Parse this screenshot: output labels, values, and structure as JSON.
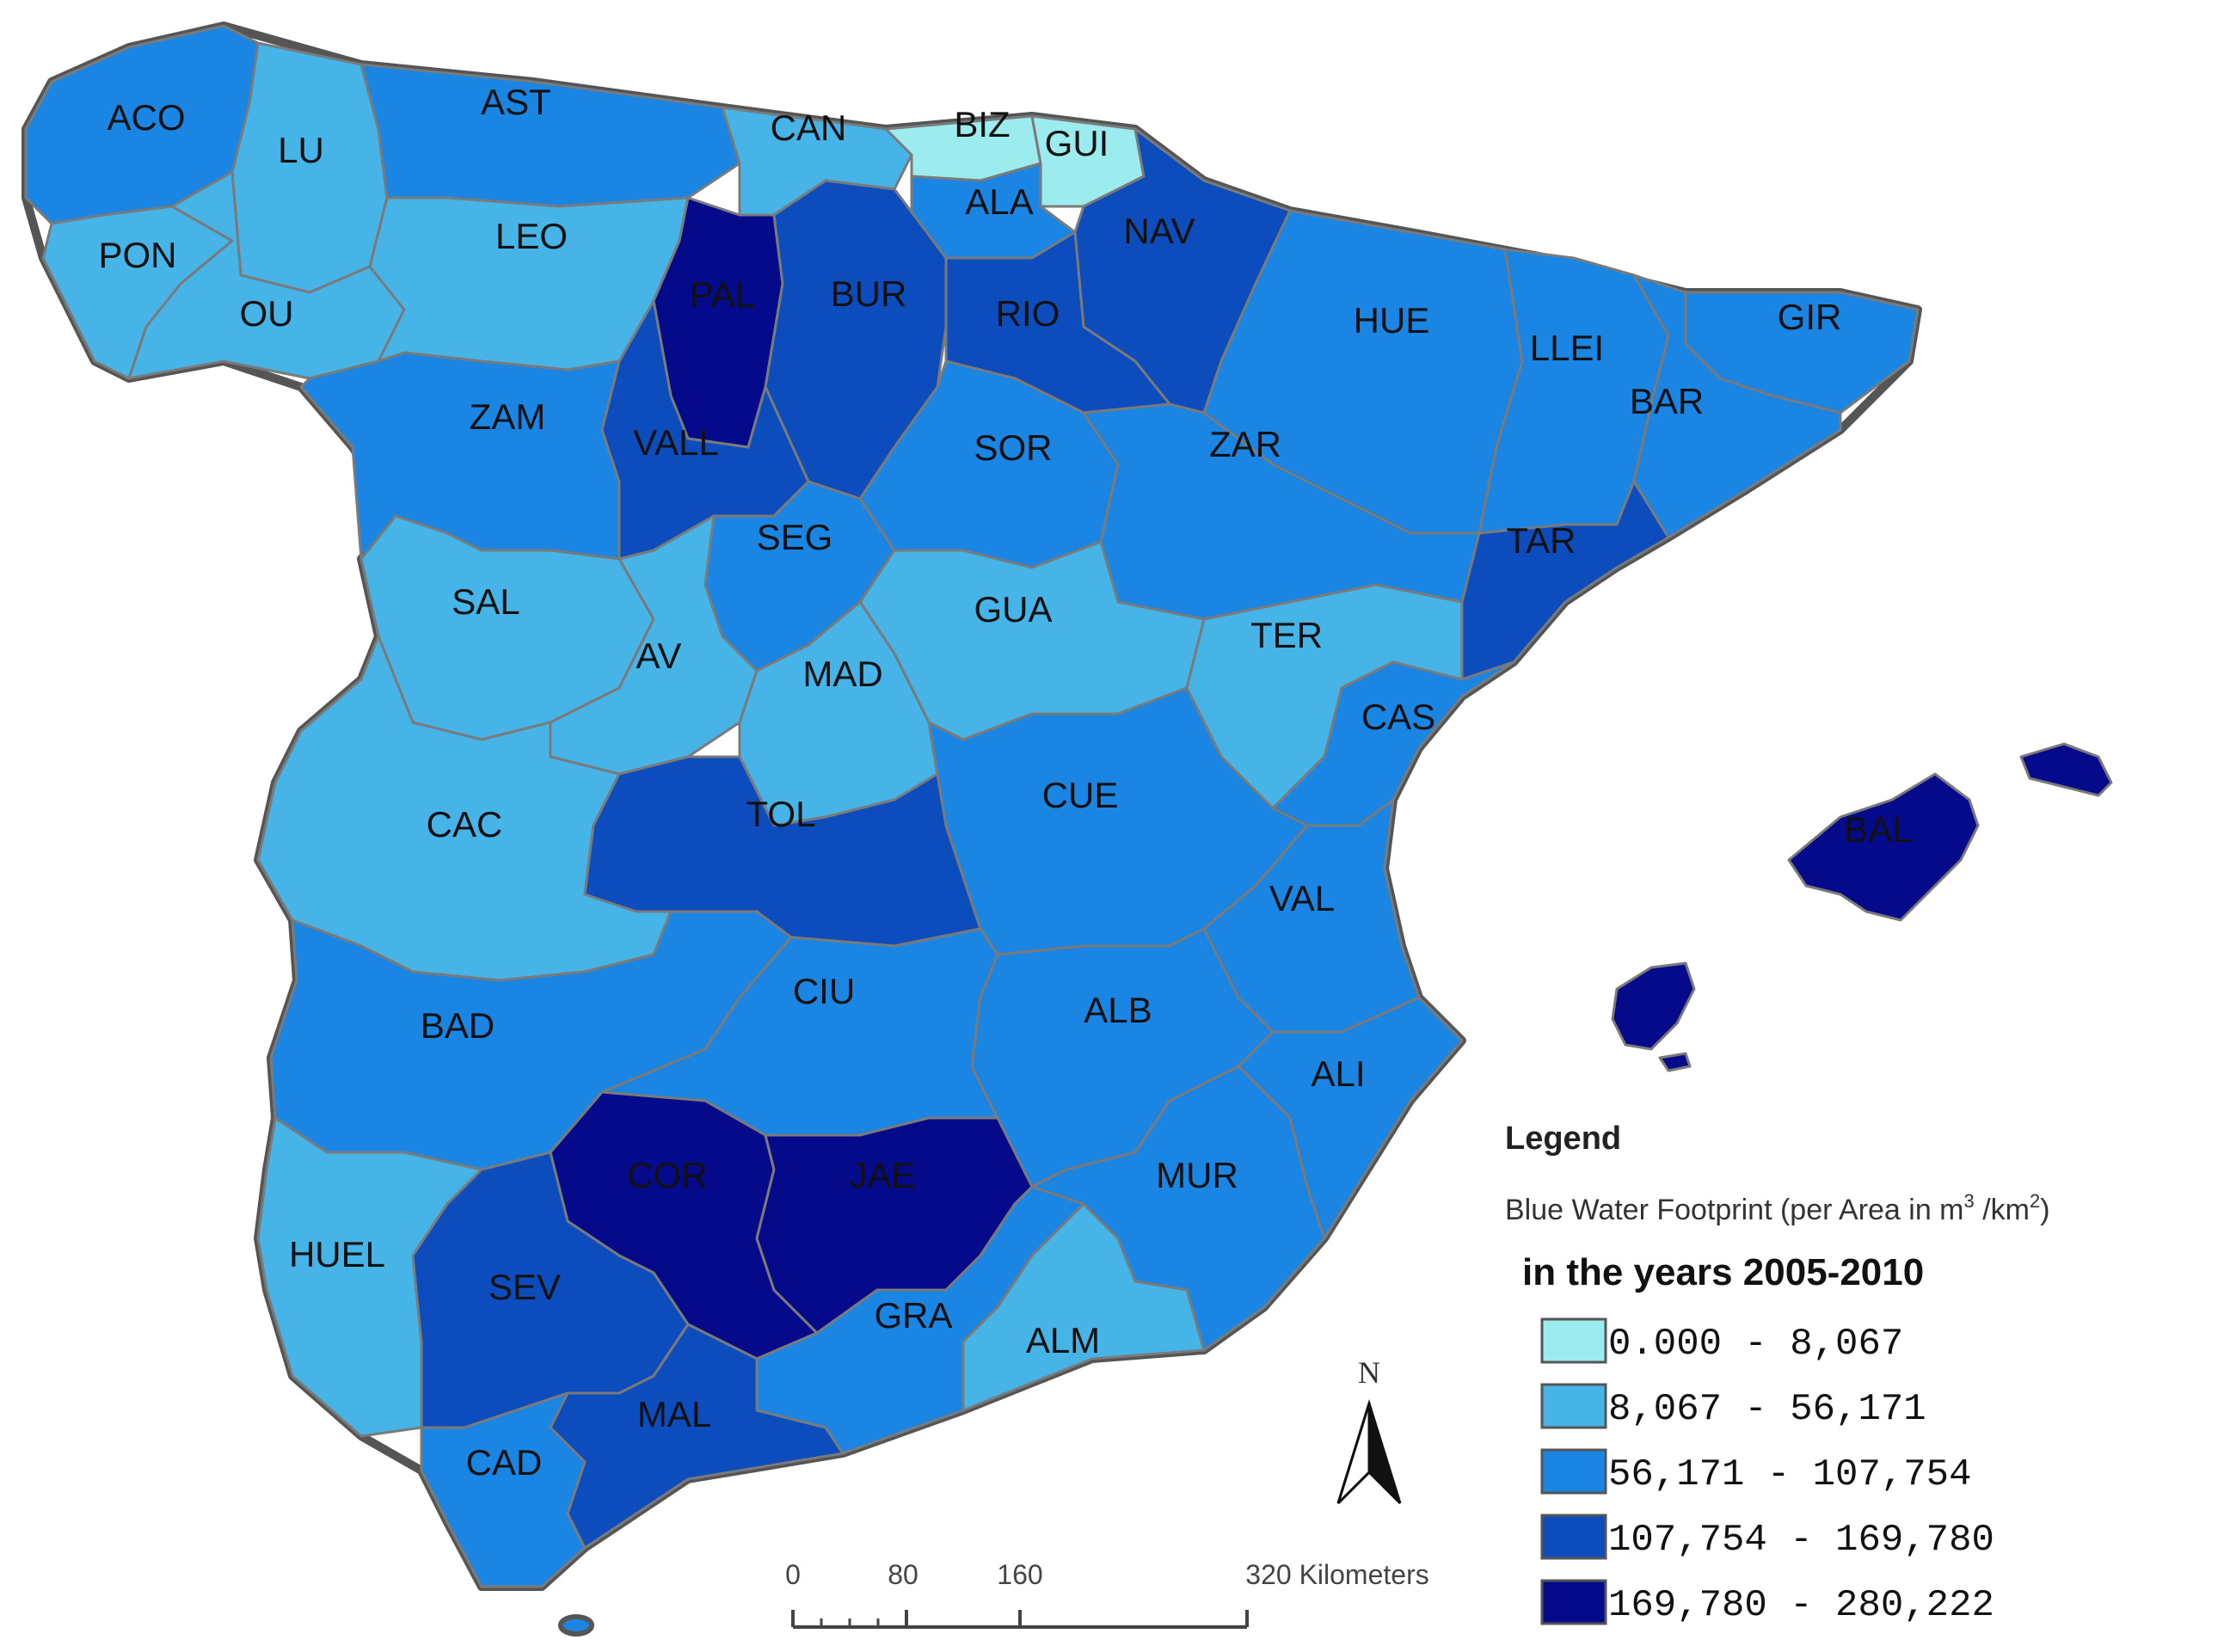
{
  "legend": {
    "title": "Legend",
    "subtitle": "Blue Water Footprint (per Area  in  m",
    "subtitle_sup1": "3",
    "subtitle_mid": " /km",
    "subtitle_sup2": "2",
    "subtitle_end": ")",
    "years": "in the years 2005-2010",
    "classes": [
      {
        "range": "0.000 - 8,067",
        "color": "#9cecef"
      },
      {
        "range": "8,067 - 56,171",
        "color": "#47b4e8"
      },
      {
        "range": "56,171 - 107,754",
        "color": "#1a85e3"
      },
      {
        "range": "107,754 - 169,780",
        "color": "#0d4cbd"
      },
      {
        "range": "169,780 - 280,222",
        "color": "#050a8a"
      }
    ]
  },
  "scale_bar": {
    "labels": [
      "0",
      "80",
      "160",
      "320 Kilometers"
    ]
  },
  "north_arrow": {
    "label": "N"
  },
  "provinces": [
    {
      "code": "ACO",
      "class": 2
    },
    {
      "code": "LU",
      "class": 1
    },
    {
      "code": "AST",
      "class": 2
    },
    {
      "code": "CAN",
      "class": 1
    },
    {
      "code": "BIZ",
      "class": 0
    },
    {
      "code": "GUI",
      "class": 0
    },
    {
      "code": "ALA",
      "class": 2
    },
    {
      "code": "NAV",
      "class": 3
    },
    {
      "code": "PON",
      "class": 1
    },
    {
      "code": "OU",
      "class": 1
    },
    {
      "code": "LEO",
      "class": 1
    },
    {
      "code": "PAL",
      "class": 4
    },
    {
      "code": "BUR",
      "class": 3
    },
    {
      "code": "RIO",
      "class": 3
    },
    {
      "code": "HUE",
      "class": 2
    },
    {
      "code": "LLEI",
      "class": 2
    },
    {
      "code": "GIR",
      "class": 2
    },
    {
      "code": "BAR",
      "class": 2
    },
    {
      "code": "ZAM",
      "class": 2
    },
    {
      "code": "VALL",
      "class": 3
    },
    {
      "code": "SOR",
      "class": 2
    },
    {
      "code": "ZAR",
      "class": 2
    },
    {
      "code": "SEG",
      "class": 2
    },
    {
      "code": "TAR",
      "class": 3
    },
    {
      "code": "SAL",
      "class": 1
    },
    {
      "code": "AV",
      "class": 1
    },
    {
      "code": "GUA",
      "class": 1
    },
    {
      "code": "TER",
      "class": 1
    },
    {
      "code": "MAD",
      "class": 1
    },
    {
      "code": "CAS",
      "class": 2
    },
    {
      "code": "CAC",
      "class": 1
    },
    {
      "code": "TOL",
      "class": 3
    },
    {
      "code": "CUE",
      "class": 2
    },
    {
      "code": "VAL",
      "class": 2
    },
    {
      "code": "BAL",
      "class": 4
    },
    {
      "code": "BAD",
      "class": 2
    },
    {
      "code": "CIU",
      "class": 2
    },
    {
      "code": "ALB",
      "class": 2
    },
    {
      "code": "ALI",
      "class": 2
    },
    {
      "code": "COR",
      "class": 4
    },
    {
      "code": "JAE",
      "class": 4
    },
    {
      "code": "MUR",
      "class": 2
    },
    {
      "code": "HUEL",
      "class": 1
    },
    {
      "code": "SEV",
      "class": 3
    },
    {
      "code": "GRA",
      "class": 2
    },
    {
      "code": "ALM",
      "class": 1
    },
    {
      "code": "MAL",
      "class": 3
    },
    {
      "code": "CAD",
      "class": 2
    }
  ]
}
